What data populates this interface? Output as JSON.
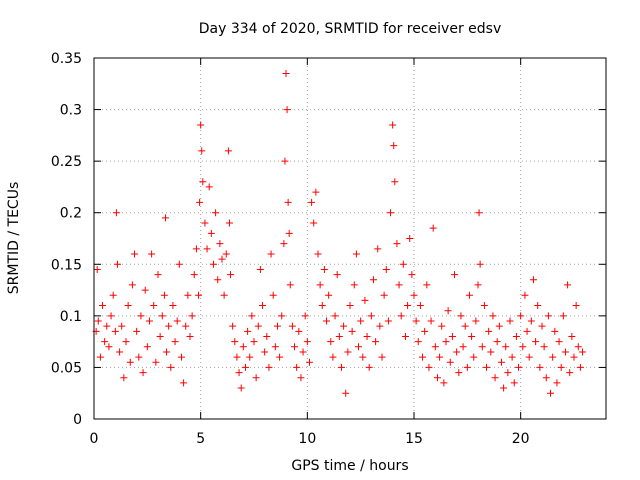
{
  "chart_data": {
    "type": "scatter",
    "title": "Day 334 of 2020, SRMTID for receiver edsv",
    "xlabel": "GPS time / hours",
    "ylabel": "SRMTID / TECUs",
    "xlim": [
      0,
      24
    ],
    "ylim": [
      0,
      0.35
    ],
    "xticks": [
      0,
      5,
      10,
      15,
      20
    ],
    "yticks": [
      0,
      0.05,
      0.1,
      0.15,
      0.2,
      0.25,
      0.3,
      0.35
    ],
    "xtick_labels": [
      "0",
      "5",
      "10",
      "15",
      "20"
    ],
    "ytick_labels": [
      "0",
      "0.05",
      "0.1",
      "0.15",
      "0.2",
      "0.25",
      "0.3",
      "0.35"
    ],
    "grid": true,
    "marker": "+",
    "color": "#ff0000",
    "series": [
      {
        "name": "SRMTID",
        "points": [
          [
            0.1,
            0.085
          ],
          [
            0.15,
            0.145
          ],
          [
            0.2,
            0.095
          ],
          [
            0.3,
            0.06
          ],
          [
            0.4,
            0.11
          ],
          [
            0.5,
            0.075
          ],
          [
            0.6,
            0.09
          ],
          [
            0.7,
            0.07
          ],
          [
            0.8,
            0.1
          ],
          [
            0.9,
            0.12
          ],
          [
            1.0,
            0.085
          ],
          [
            1.05,
            0.2
          ],
          [
            1.1,
            0.15
          ],
          [
            1.2,
            0.065
          ],
          [
            1.3,
            0.09
          ],
          [
            1.4,
            0.04
          ],
          [
            1.5,
            0.075
          ],
          [
            1.6,
            0.11
          ],
          [
            1.7,
            0.055
          ],
          [
            1.8,
            0.13
          ],
          [
            1.9,
            0.16
          ],
          [
            2.0,
            0.085
          ],
          [
            2.1,
            0.06
          ],
          [
            2.2,
            0.1
          ],
          [
            2.3,
            0.045
          ],
          [
            2.4,
            0.125
          ],
          [
            2.5,
            0.07
          ],
          [
            2.6,
            0.095
          ],
          [
            2.7,
            0.16
          ],
          [
            2.8,
            0.11
          ],
          [
            2.9,
            0.055
          ],
          [
            3.0,
            0.14
          ],
          [
            3.1,
            0.08
          ],
          [
            3.2,
            0.1
          ],
          [
            3.3,
            0.12
          ],
          [
            3.35,
            0.195
          ],
          [
            3.4,
            0.065
          ],
          [
            3.5,
            0.09
          ],
          [
            3.6,
            0.05
          ],
          [
            3.7,
            0.11
          ],
          [
            3.8,
            0.075
          ],
          [
            3.9,
            0.095
          ],
          [
            4.0,
            0.15
          ],
          [
            4.1,
            0.06
          ],
          [
            4.2,
            0.035
          ],
          [
            4.3,
            0.09
          ],
          [
            4.4,
            0.12
          ],
          [
            4.5,
            0.08
          ],
          [
            4.6,
            0.1
          ],
          [
            4.7,
            0.14
          ],
          [
            4.8,
            0.165
          ],
          [
            4.9,
            0.12
          ],
          [
            4.95,
            0.21
          ],
          [
            5.0,
            0.285
          ],
          [
            5.05,
            0.26
          ],
          [
            5.1,
            0.23
          ],
          [
            5.2,
            0.19
          ],
          [
            5.3,
            0.165
          ],
          [
            5.4,
            0.225
          ],
          [
            5.5,
            0.18
          ],
          [
            5.6,
            0.15
          ],
          [
            5.7,
            0.2
          ],
          [
            5.8,
            0.135
          ],
          [
            5.9,
            0.17
          ],
          [
            6.0,
            0.155
          ],
          [
            6.1,
            0.12
          ],
          [
            6.2,
            0.16
          ],
          [
            6.3,
            0.26
          ],
          [
            6.35,
            0.19
          ],
          [
            6.4,
            0.14
          ],
          [
            6.5,
            0.09
          ],
          [
            6.6,
            0.075
          ],
          [
            6.7,
            0.06
          ],
          [
            6.8,
            0.045
          ],
          [
            6.9,
            0.03
          ],
          [
            7.0,
            0.07
          ],
          [
            7.1,
            0.05
          ],
          [
            7.2,
            0.085
          ],
          [
            7.3,
            0.06
          ],
          [
            7.4,
            0.1
          ],
          [
            7.5,
            0.075
          ],
          [
            7.6,
            0.04
          ],
          [
            7.7,
            0.09
          ],
          [
            7.8,
            0.145
          ],
          [
            7.9,
            0.11
          ],
          [
            8.0,
            0.065
          ],
          [
            8.1,
            0.08
          ],
          [
            8.2,
            0.05
          ],
          [
            8.3,
            0.16
          ],
          [
            8.4,
            0.12
          ],
          [
            8.5,
            0.07
          ],
          [
            8.6,
            0.09
          ],
          [
            8.7,
            0.06
          ],
          [
            8.8,
            0.1
          ],
          [
            8.9,
            0.17
          ],
          [
            8.95,
            0.25
          ],
          [
            9.0,
            0.335
          ],
          [
            9.05,
            0.3
          ],
          [
            9.1,
            0.21
          ],
          [
            9.15,
            0.18
          ],
          [
            9.2,
            0.13
          ],
          [
            9.3,
            0.09
          ],
          [
            9.4,
            0.07
          ],
          [
            9.5,
            0.05
          ],
          [
            9.6,
            0.085
          ],
          [
            9.7,
            0.04
          ],
          [
            9.8,
            0.065
          ],
          [
            9.9,
            0.1
          ],
          [
            10.0,
            0.075
          ],
          [
            10.1,
            0.055
          ],
          [
            10.2,
            0.21
          ],
          [
            10.3,
            0.19
          ],
          [
            10.4,
            0.22
          ],
          [
            10.5,
            0.16
          ],
          [
            10.6,
            0.13
          ],
          [
            10.7,
            0.11
          ],
          [
            10.8,
            0.145
          ],
          [
            10.9,
            0.095
          ],
          [
            11.0,
            0.12
          ],
          [
            11.1,
            0.075
          ],
          [
            11.2,
            0.06
          ],
          [
            11.3,
            0.1
          ],
          [
            11.4,
            0.14
          ],
          [
            11.5,
            0.08
          ],
          [
            11.6,
            0.05
          ],
          [
            11.7,
            0.09
          ],
          [
            11.8,
            0.025
          ],
          [
            11.9,
            0.065
          ],
          [
            12.0,
            0.11
          ],
          [
            12.1,
            0.085
          ],
          [
            12.2,
            0.13
          ],
          [
            12.3,
            0.16
          ],
          [
            12.4,
            0.07
          ],
          [
            12.5,
            0.095
          ],
          [
            12.6,
            0.06
          ],
          [
            12.7,
            0.115
          ],
          [
            12.8,
            0.08
          ],
          [
            12.9,
            0.05
          ],
          [
            13.0,
            0.1
          ],
          [
            13.1,
            0.135
          ],
          [
            13.2,
            0.075
          ],
          [
            13.3,
            0.165
          ],
          [
            13.4,
            0.09
          ],
          [
            13.5,
            0.06
          ],
          [
            13.6,
            0.12
          ],
          [
            13.7,
            0.145
          ],
          [
            13.8,
            0.095
          ],
          [
            13.9,
            0.2
          ],
          [
            14.0,
            0.285
          ],
          [
            14.05,
            0.265
          ],
          [
            14.1,
            0.23
          ],
          [
            14.2,
            0.17
          ],
          [
            14.3,
            0.13
          ],
          [
            14.4,
            0.1
          ],
          [
            14.5,
            0.15
          ],
          [
            14.6,
            0.08
          ],
          [
            14.7,
            0.11
          ],
          [
            14.8,
            0.175
          ],
          [
            14.9,
            0.14
          ],
          [
            15.0,
            0.12
          ],
          [
            15.1,
            0.095
          ],
          [
            15.2,
            0.075
          ],
          [
            15.3,
            0.11
          ],
          [
            15.4,
            0.06
          ],
          [
            15.5,
            0.085
          ],
          [
            15.6,
            0.13
          ],
          [
            15.7,
            0.05
          ],
          [
            15.8,
            0.095
          ],
          [
            15.9,
            0.185
          ],
          [
            16.0,
            0.07
          ],
          [
            16.1,
            0.04
          ],
          [
            16.2,
            0.06
          ],
          [
            16.3,
            0.09
          ],
          [
            16.4,
            0.035
          ],
          [
            16.5,
            0.075
          ],
          [
            16.6,
            0.105
          ],
          [
            16.7,
            0.055
          ],
          [
            16.8,
            0.08
          ],
          [
            16.9,
            0.14
          ],
          [
            17.0,
            0.065
          ],
          [
            17.1,
            0.045
          ],
          [
            17.2,
            0.1
          ],
          [
            17.3,
            0.07
          ],
          [
            17.4,
            0.09
          ],
          [
            17.5,
            0.05
          ],
          [
            17.6,
            0.12
          ],
          [
            17.7,
            0.08
          ],
          [
            17.8,
            0.06
          ],
          [
            17.9,
            0.095
          ],
          [
            18.0,
            0.13
          ],
          [
            18.05,
            0.2
          ],
          [
            18.1,
            0.15
          ],
          [
            18.2,
            0.07
          ],
          [
            18.3,
            0.11
          ],
          [
            18.4,
            0.05
          ],
          [
            18.5,
            0.085
          ],
          [
            18.6,
            0.065
          ],
          [
            18.7,
            0.1
          ],
          [
            18.8,
            0.04
          ],
          [
            18.9,
            0.075
          ],
          [
            19.0,
            0.09
          ],
          [
            19.1,
            0.055
          ],
          [
            19.2,
            0.03
          ],
          [
            19.3,
            0.07
          ],
          [
            19.4,
            0.045
          ],
          [
            19.5,
            0.095
          ],
          [
            19.6,
            0.06
          ],
          [
            19.7,
            0.035
          ],
          [
            19.8,
            0.08
          ],
          [
            19.9,
            0.05
          ],
          [
            20.0,
            0.1
          ],
          [
            20.1,
            0.07
          ],
          [
            20.2,
            0.12
          ],
          [
            20.3,
            0.085
          ],
          [
            20.4,
            0.06
          ],
          [
            20.5,
            0.095
          ],
          [
            20.6,
            0.135
          ],
          [
            20.7,
            0.075
          ],
          [
            20.8,
            0.11
          ],
          [
            20.9,
            0.05
          ],
          [
            21.0,
            0.09
          ],
          [
            21.1,
            0.07
          ],
          [
            21.2,
            0.04
          ],
          [
            21.3,
            0.1
          ],
          [
            21.4,
            0.025
          ],
          [
            21.5,
            0.06
          ],
          [
            21.6,
            0.085
          ],
          [
            21.7,
            0.035
          ],
          [
            21.8,
            0.075
          ],
          [
            21.9,
            0.05
          ],
          [
            22.0,
            0.1
          ],
          [
            22.1,
            0.065
          ],
          [
            22.2,
            0.13
          ],
          [
            22.3,
            0.045
          ],
          [
            22.4,
            0.08
          ],
          [
            22.5,
            0.06
          ],
          [
            22.6,
            0.11
          ],
          [
            22.7,
            0.07
          ],
          [
            22.8,
            0.05
          ],
          [
            22.9,
            0.065
          ]
        ]
      }
    ]
  }
}
